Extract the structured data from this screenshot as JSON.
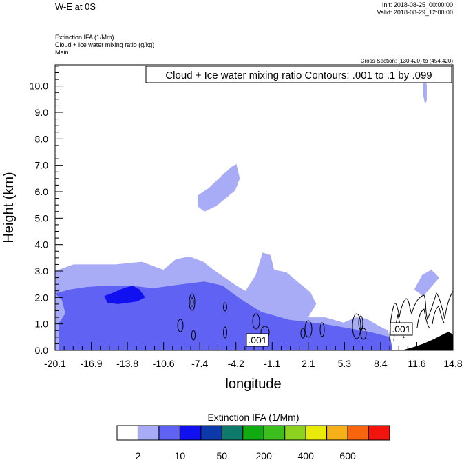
{
  "header": {
    "title": "W-E at 0S",
    "init": "Init: 2018-08-25_00:00:00",
    "valid": "Valid: 2018-08-29_12:00:00",
    "field_lines": [
      "Extinction IFA   (1/Mm)",
      "Cloud + Ice water mixing ratio   (g/kg)",
      "Main"
    ],
    "cross_section": "Cross-Section: (130,420) to (454,420)"
  },
  "contour_info": "Cloud + Ice water mixing ratio Contours: .001 to .1 by .099",
  "contour_labels": [
    ".001",
    ".001"
  ],
  "chart_data": {
    "type": "heatmap",
    "xlabel": "longitude",
    "ylabel": "Height (km)",
    "xlim": [
      -20.1,
      14.8
    ],
    "ylim": [
      0.0,
      10.8
    ],
    "x_ticks": [
      "-20.1",
      "-16.9",
      "-13.8",
      "-10.6",
      "-7.4",
      "-4.2",
      "-1.1",
      "2.1",
      "5.3",
      "8.4",
      "11.6",
      "14.8"
    ],
    "y_ticks": [
      "0.0",
      "1.0",
      "2.0",
      "3.0",
      "4.0",
      "5.0",
      "6.0",
      "7.0",
      "8.0",
      "9.0",
      "10.0"
    ],
    "colorbar": {
      "title": "Extinction IFA  (1/Mm)",
      "labels": [
        "2",
        "10",
        "50",
        "200",
        "400",
        "600"
      ],
      "colors": [
        "#ffffff",
        "#a8acf6",
        "#5f62f2",
        "#1010f0",
        "#0d39aa",
        "#0d7a6a",
        "#11aa11",
        "#3cbe1c",
        "#8cd21e",
        "#e9e90a",
        "#f6b11a",
        "#f9650f",
        "#f4140e"
      ]
    },
    "extinction_regions": [
      {
        "level": 1,
        "color": "#a8acf6",
        "points": [
          [
            -20.1,
            3.0
          ],
          [
            -18.5,
            3.25
          ],
          [
            -17.0,
            3.25
          ],
          [
            -14.8,
            3.25
          ],
          [
            -12.5,
            3.35
          ],
          [
            -10.6,
            3.05
          ],
          [
            -9.5,
            3.45
          ],
          [
            -8.3,
            3.55
          ],
          [
            -7.1,
            3.35
          ],
          [
            -6.2,
            3.05
          ],
          [
            -4.2,
            2.45
          ],
          [
            -3.4,
            2.25
          ],
          [
            -2.5,
            2.85
          ],
          [
            -1.9,
            3.7
          ],
          [
            -1.2,
            3.6
          ],
          [
            -0.9,
            3.05
          ],
          [
            0.2,
            2.95
          ],
          [
            1.3,
            2.55
          ],
          [
            2.3,
            2.2
          ],
          [
            2.8,
            1.75
          ],
          [
            2.1,
            1.25
          ],
          [
            3.6,
            1.25
          ],
          [
            5.2,
            1.05
          ],
          [
            6.3,
            1.25
          ],
          [
            7.2,
            1.2
          ],
          [
            8.2,
            0.95
          ],
          [
            9.1,
            0.75
          ],
          [
            9.5,
            0.0
          ],
          [
            -20.1,
            0.0
          ]
        ]
      },
      {
        "level": 1,
        "color": "#a8acf6",
        "points": [
          [
            11.4,
            2.3
          ],
          [
            12.1,
            2.85
          ],
          [
            12.9,
            3.05
          ],
          [
            13.6,
            2.75
          ],
          [
            12.9,
            2.4
          ],
          [
            12.2,
            2.05
          ]
        ]
      },
      {
        "level": 1,
        "color": "#a8acf6",
        "points": [
          [
            -7.6,
            5.85
          ],
          [
            -6.6,
            6.15
          ],
          [
            -5.5,
            6.6
          ],
          [
            -4.6,
            6.95
          ],
          [
            -4.2,
            7.05
          ],
          [
            -3.9,
            6.5
          ],
          [
            -4.3,
            6.05
          ],
          [
            -5.0,
            5.8
          ],
          [
            -6.0,
            5.45
          ],
          [
            -7.0,
            5.25
          ],
          [
            -7.6,
            5.45
          ]
        ]
      },
      {
        "level": 1,
        "color": "#a8acf6",
        "points": [
          [
            12.2,
            10.35
          ],
          [
            12.5,
            10.05
          ],
          [
            12.5,
            9.45
          ],
          [
            12.35,
            9.3
          ],
          [
            12.15,
            9.75
          ]
        ]
      },
      {
        "level": 2,
        "color": "#5f62f2",
        "points": [
          [
            -20.1,
            2.15
          ],
          [
            -18.8,
            2.3
          ],
          [
            -17.3,
            2.4
          ],
          [
            -15.5,
            2.45
          ],
          [
            -13.5,
            2.45
          ],
          [
            -11.5,
            2.35
          ],
          [
            -9.0,
            2.5
          ],
          [
            -7.0,
            2.6
          ],
          [
            -5.4,
            2.45
          ],
          [
            -4.5,
            2.15
          ],
          [
            -3.5,
            1.85
          ],
          [
            -2.0,
            1.45
          ],
          [
            0.5,
            1.15
          ],
          [
            3.5,
            1.0
          ],
          [
            5.5,
            0.85
          ],
          [
            7.5,
            0.7
          ],
          [
            9.3,
            0.5
          ],
          [
            9.5,
            0.0
          ],
          [
            -19.8,
            0.0
          ],
          [
            -19.8,
            1.0
          ],
          [
            -19.2,
            1.4
          ],
          [
            -19.5,
            1.9
          ]
        ]
      },
      {
        "level": 3,
        "color": "#1010f0",
        "points": [
          [
            -15.8,
            2.05
          ],
          [
            -14.9,
            2.2
          ],
          [
            -14.1,
            2.35
          ],
          [
            -13.3,
            2.45
          ],
          [
            -12.7,
            2.3
          ],
          [
            -12.2,
            2.0
          ],
          [
            -12.9,
            1.85
          ],
          [
            -13.7,
            1.8
          ],
          [
            -14.6,
            1.75
          ],
          [
            -15.5,
            1.8
          ]
        ]
      }
    ],
    "terrain": {
      "color": "#000000",
      "points": [
        [
          10.3,
          0.0
        ],
        [
          11.3,
          0.12
        ],
        [
          12.2,
          0.25
        ],
        [
          13.1,
          0.42
        ],
        [
          14.0,
          0.62
        ],
        [
          14.4,
          0.7
        ],
        [
          14.8,
          0.6
        ],
        [
          14.8,
          0.0
        ]
      ]
    }
  }
}
